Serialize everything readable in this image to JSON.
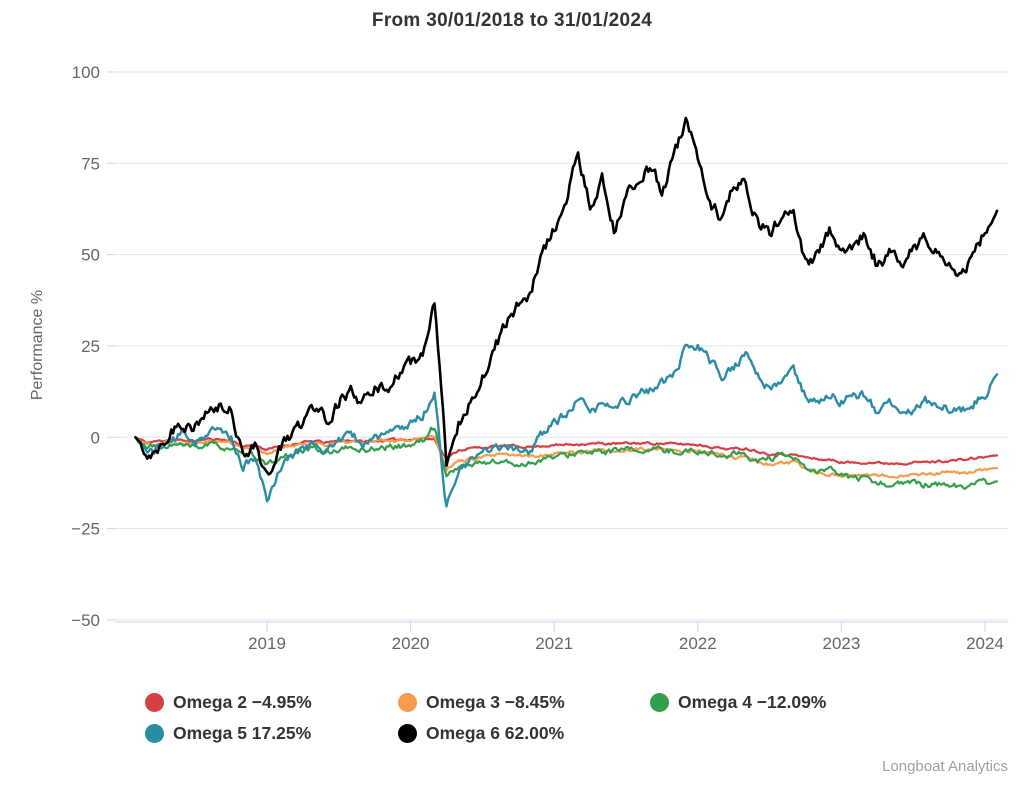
{
  "title": "From 30/01/2018 to 31/01/2024",
  "y_axis": {
    "label": "Performance %",
    "ticks": [
      "100",
      "75",
      "50",
      "25",
      "0",
      "−25",
      "−50"
    ],
    "tick_values": [
      100,
      75,
      50,
      25,
      0,
      -25,
      -50
    ]
  },
  "x_axis": {
    "ticks": [
      "2019",
      "2020",
      "2021",
      "2022",
      "2023",
      "2024"
    ],
    "tick_values": [
      2019,
      2020,
      2021,
      2022,
      2023,
      2024
    ]
  },
  "legend": {
    "items": [
      {
        "label": "Omega 2 −4.95%",
        "color": "#d64045"
      },
      {
        "label": "Omega 3 −8.45%",
        "color": "#f79b4c"
      },
      {
        "label": "Omega 4 −12.09%",
        "color": "#339e4c"
      },
      {
        "label": "Omega 5 17.25%",
        "color": "#2b8ca6"
      },
      {
        "label": "Omega 6 62.00%",
        "color": "#000000"
      }
    ]
  },
  "credits": "Longboat Analytics",
  "chart_data": {
    "type": "line",
    "title": "From 30/01/2018 to 31/01/2024",
    "xlabel": "",
    "ylabel": "Performance %",
    "ylim": [
      -50,
      100
    ],
    "xlim_years": [
      2018.083,
      2024.085
    ],
    "x_range": [
      "30/01/2018",
      "31/01/2024"
    ],
    "x_sampling": "monthly (approximate values read from daily curve)",
    "x_start_year": 2018.0833,
    "x_step_years": 0.0833333,
    "grid": true,
    "legend_position": "bottom",
    "series": [
      {
        "name": "Omega 2",
        "final_value": -4.95,
        "color": "#d64045",
        "values": [
          0,
          -1.5,
          -1,
          -0.5,
          -1,
          -1,
          -0.5,
          -0.5,
          -1,
          -2.5,
          -2,
          -3.5,
          -2.5,
          -2,
          -1.5,
          -1,
          -1.5,
          -1,
          -0.8,
          -1.2,
          -1,
          -0.8,
          -0.6,
          -0.5,
          -0.3,
          -0.5,
          -6,
          -3.5,
          -3,
          -2.8,
          -2.5,
          -2.3,
          -2.5,
          -2.6,
          -2.3,
          -2.2,
          -2,
          -1.8,
          -1.8,
          -1.7,
          -1.8,
          -1.7,
          -1.6,
          -1.6,
          -1.7,
          -1.8,
          -1.9,
          -2,
          -2.5,
          -3,
          -3.2,
          -3,
          -3.8,
          -4.5,
          -4.5,
          -4.8,
          -5.5,
          -6,
          -6.2,
          -6.8,
          -7,
          -6.8,
          -7,
          -7.1,
          -7,
          -6.9,
          -6.8,
          -6.6,
          -6.4,
          -6.2,
          -5.8,
          -5.4,
          -4.95
        ]
      },
      {
        "name": "Omega 3",
        "final_value": -8.45,
        "color": "#f79b4c",
        "values": [
          0,
          -2,
          -1.5,
          -1,
          -1.5,
          -1.2,
          -0.8,
          -1,
          -1.5,
          -3,
          -2.5,
          -4.5,
          -3,
          -2.5,
          -2,
          -1.5,
          -2,
          -1.5,
          -1.2,
          -1.5,
          -1.2,
          -1,
          -0.8,
          -0.5,
          0,
          0.5,
          -8.5,
          -6.5,
          -6,
          -5.5,
          -5,
          -4.8,
          -5,
          -5.2,
          -4.8,
          -4.5,
          -4.2,
          -4,
          -3.8,
          -3.6,
          -3.7,
          -3.5,
          -3.4,
          -3.3,
          -3.5,
          -3.6,
          -3.8,
          -4,
          -4.2,
          -5,
          -5.5,
          -5.2,
          -6.5,
          -7.5,
          -7.2,
          -7,
          -8.5,
          -9.5,
          -10,
          -10.5,
          -10.5,
          -10.4,
          -10.6,
          -10.5,
          -10.3,
          -10.2,
          -10,
          -9.8,
          -9.6,
          -9.9,
          -9.3,
          -8.9,
          -8.45
        ]
      },
      {
        "name": "Omega 4",
        "final_value": -12.09,
        "color": "#339e4c",
        "values": [
          0,
          -3,
          -2.5,
          -2,
          -2.5,
          -3,
          -2,
          -2.5,
          -3,
          -5.5,
          -5,
          -8,
          -6,
          -4.5,
          -4,
          -3,
          -4,
          -3.5,
          -3,
          -3.5,
          -3,
          -2.8,
          -2.5,
          -2,
          -1,
          3,
          -10.5,
          -8,
          -7.5,
          -7,
          -6.5,
          -7,
          -7.5,
          -7,
          -6,
          -5.5,
          -5,
          -4,
          -4.5,
          -4,
          -3.8,
          -3.6,
          -3.5,
          -3.4,
          -3.6,
          -3.8,
          -3.7,
          -3.9,
          -4,
          -5.5,
          -4.5,
          -4.8,
          -6.5,
          -6,
          -5.5,
          -5.8,
          -8.5,
          -9.5,
          -9,
          -10.5,
          -11,
          -11.5,
          -12.5,
          -12.8,
          -12.5,
          -12.7,
          -13,
          -12.8,
          -13.2,
          -13.5,
          -12.8,
          -12.5,
          -12.09
        ]
      },
      {
        "name": "Omega 5",
        "final_value": 17.25,
        "color": "#2b8ca6",
        "values": [
          0,
          -4,
          -3,
          -1,
          1,
          -1,
          1,
          2,
          0,
          -8,
          -6,
          -17,
          -9,
          -5,
          -3,
          -1,
          -4,
          -1,
          1,
          -2,
          0,
          1,
          2,
          4,
          6,
          12,
          -19,
          -9,
          -7,
          -4,
          -3,
          -2,
          -3,
          -4,
          1,
          4,
          6,
          10,
          7,
          9,
          8,
          10,
          12,
          13,
          15,
          17,
          24,
          25,
          21,
          17,
          19,
          23,
          17,
          13,
          15,
          19,
          11,
          9,
          12,
          10,
          12,
          11,
          7,
          9,
          7,
          8,
          10,
          9,
          8,
          7,
          9,
          12,
          17.25
        ]
      },
      {
        "name": "Omega 6",
        "final_value": 62.0,
        "color": "#000000",
        "values": [
          0,
          -5,
          -2,
          2,
          4,
          3,
          6,
          8,
          7,
          -4,
          -2,
          -11,
          -4,
          1,
          4,
          9,
          5,
          10,
          12,
          9,
          13,
          14,
          17,
          20,
          23,
          36,
          -7,
          4,
          10,
          17,
          24,
          31,
          36,
          40,
          50,
          57,
          63,
          79,
          62,
          70,
          57,
          66,
          70,
          74,
          68,
          76,
          88,
          76,
          64,
          60,
          69,
          71,
          58,
          56,
          60,
          63,
          47,
          50,
          56,
          50,
          53,
          56,
          47,
          50,
          47,
          51,
          55,
          50,
          48,
          45,
          50,
          56,
          62
        ]
      }
    ]
  }
}
